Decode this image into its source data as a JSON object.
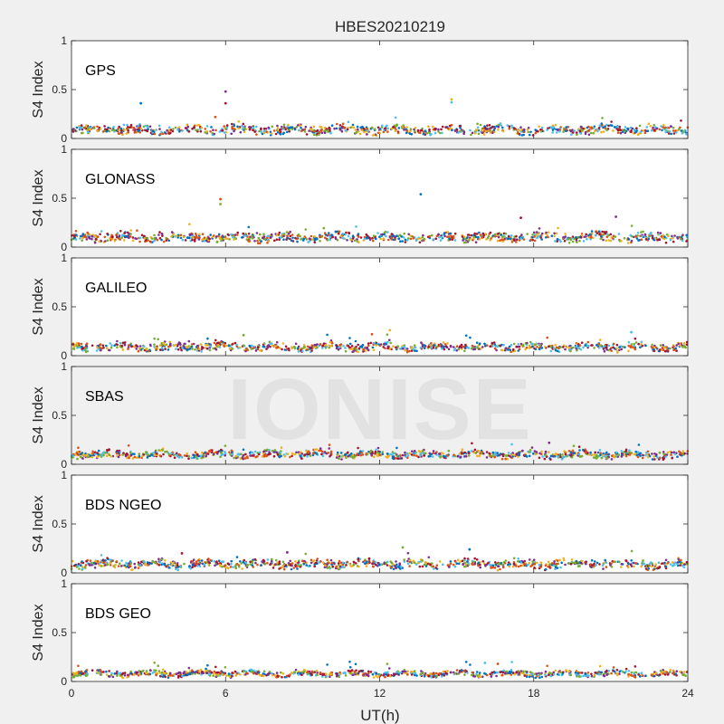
{
  "figure_title": "HBES20210219",
  "watermark_text": "IONISE",
  "colors": [
    "#0072BD",
    "#D95319",
    "#EDB120",
    "#7E2F8E",
    "#77AC30",
    "#4DBEEE",
    "#A2142F"
  ],
  "chart_data": {
    "type": "scatter",
    "title": "HBES20210219",
    "xlabel": "UT(h)",
    "ylabel": "S4 Index",
    "xlim": [
      0,
      24
    ],
    "ylim": [
      0,
      1
    ],
    "xticks": [
      "0",
      "6",
      "12",
      "18",
      "24"
    ],
    "yticks": [
      "0",
      "0.5",
      "1"
    ],
    "grid": false,
    "panels": [
      {
        "name": "GPS",
        "baseline": 0.09,
        "spread": 0.06,
        "outliers": [
          [
            2.7,
            0.36
          ],
          [
            6.0,
            0.48
          ],
          [
            6.0,
            0.36
          ],
          [
            14.8,
            0.4
          ],
          [
            14.8,
            0.37
          ],
          [
            5.6,
            0.22
          ]
        ]
      },
      {
        "name": "GLONASS",
        "baseline": 0.1,
        "spread": 0.06,
        "outliers": [
          [
            5.8,
            0.49
          ],
          [
            5.8,
            0.44
          ],
          [
            13.6,
            0.54
          ],
          [
            21.2,
            0.31
          ],
          [
            17.5,
            0.3
          ]
        ]
      },
      {
        "name": "GALILEO",
        "baseline": 0.09,
        "spread": 0.05,
        "outliers": [
          [
            12.4,
            0.26
          ],
          [
            21.8,
            0.24
          ],
          [
            11.7,
            0.22
          ],
          [
            6.7,
            0.21
          ]
        ]
      },
      {
        "name": "SBAS",
        "baseline": 0.1,
        "spread": 0.04,
        "outliers": [
          [
            18.6,
            0.22
          ]
        ]
      },
      {
        "name": "BDS NGEO",
        "baseline": 0.09,
        "spread": 0.06,
        "outliers": [
          [
            12.9,
            0.26
          ],
          [
            15.5,
            0.24
          ],
          [
            8.4,
            0.21
          ],
          [
            4.3,
            0.2
          ]
        ]
      },
      {
        "name": "BDS GEO",
        "baseline": 0.08,
        "spread": 0.02,
        "outliers": [
          [
            16.1,
            0.19
          ],
          [
            16.6,
            0.18
          ]
        ]
      }
    ]
  }
}
